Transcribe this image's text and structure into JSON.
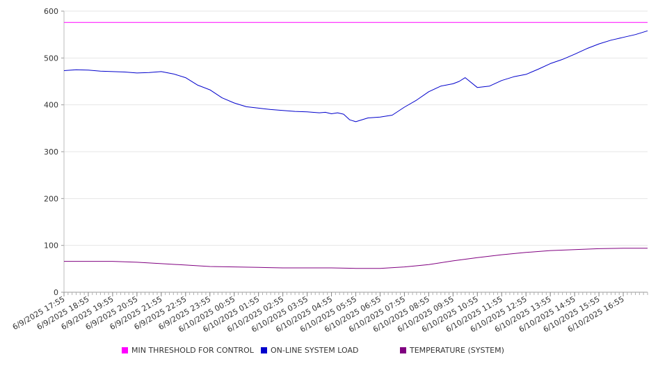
{
  "chart_data": {
    "type": "line",
    "title": "",
    "xlabel": "",
    "ylabel": "",
    "ylim": [
      0,
      600
    ],
    "y_ticks": [
      0,
      100,
      200,
      300,
      400,
      500,
      600
    ],
    "x_tick_labels": [
      "6/9/2025 17:55",
      "6/9/2025 18:55",
      "6/9/2025 19:55",
      "6/9/2025 20:55",
      "6/9/2025 21:55",
      "6/9/2025 22:55",
      "6/9/2025 23:55",
      "6/10/2025 00:55",
      "6/10/2025 01:55",
      "6/10/2025 02:55",
      "6/10/2025 03:55",
      "6/10/2025 04:55",
      "6/10/2025 05:55",
      "6/10/2025 06:55",
      "6/10/2025 07:55",
      "6/10/2025 08:55",
      "6/10/2025 09:55",
      "6/10/2025 10:55",
      "6/10/2025 11:55",
      "6/10/2025 12:55",
      "6/10/2025 13:55",
      "6/10/2025 14:55",
      "6/10/2025 15:55",
      "6/10/2025 16:55"
    ],
    "x_range": [
      "6/9/2025 17:55",
      "6/10/2025 17:55"
    ],
    "grid": true,
    "legend_position": "bottom",
    "series": [
      {
        "name": "MIN THRESHOLD FOR CONTROL",
        "color": "#ff00ff",
        "x": [
          "6/9/2025 17:55",
          "6/10/2025 17:55"
        ],
        "values": [
          576,
          576
        ]
      },
      {
        "name": "ON-LINE SYSTEM LOAD",
        "color": "#0000cc",
        "x": [
          "6/9/2025 17:55",
          "6/9/2025 18:25",
          "6/9/2025 18:55",
          "6/9/2025 19:25",
          "6/9/2025 19:55",
          "6/9/2025 20:25",
          "6/9/2025 20:55",
          "6/9/2025 21:25",
          "6/9/2025 21:55",
          "6/9/2025 22:25",
          "6/9/2025 22:55",
          "6/9/2025 23:25",
          "6/9/2025 23:55",
          "6/10/2025 00:25",
          "6/10/2025 00:55",
          "6/10/2025 01:25",
          "6/10/2025 01:55",
          "6/10/2025 02:25",
          "6/10/2025 02:55",
          "6/10/2025 03:25",
          "6/10/2025 03:55",
          "6/10/2025 04:25",
          "6/10/2025 04:40",
          "6/10/2025 04:55",
          "6/10/2025 05:10",
          "6/10/2025 05:25",
          "6/10/2025 05:40",
          "6/10/2025 05:55",
          "6/10/2025 06:25",
          "6/10/2025 06:55",
          "6/10/2025 07:25",
          "6/10/2025 07:55",
          "6/10/2025 08:25",
          "6/10/2025 08:55",
          "6/10/2025 09:25",
          "6/10/2025 09:55",
          "6/10/2025 10:10",
          "6/10/2025 10:25",
          "6/10/2025 10:55",
          "6/10/2025 11:25",
          "6/10/2025 11:55",
          "6/10/2025 12:25",
          "6/10/2025 12:55",
          "6/10/2025 13:25",
          "6/10/2025 13:55",
          "6/10/2025 14:25",
          "6/10/2025 14:55",
          "6/10/2025 15:25",
          "6/10/2025 15:55",
          "6/10/2025 16:25",
          "6/10/2025 16:55",
          "6/10/2025 17:25",
          "6/10/2025 17:55"
        ],
        "values": [
          473,
          475,
          474,
          472,
          471,
          470,
          468,
          469,
          471,
          466,
          458,
          442,
          432,
          415,
          404,
          396,
          393,
          390,
          388,
          386,
          385,
          383,
          384,
          381,
          383,
          380,
          368,
          364,
          372,
          374,
          378,
          395,
          410,
          428,
          440,
          445,
          450,
          458,
          437,
          440,
          452,
          460,
          465,
          476,
          488,
          497,
          508,
          520,
          530,
          538,
          544,
          550,
          558
        ]
      },
      {
        "name": "TEMPERATURE (SYSTEM)",
        "color": "#800080",
        "x": [
          "6/9/2025 17:55",
          "6/9/2025 18:55",
          "6/9/2025 19:55",
          "6/9/2025 20:55",
          "6/9/2025 21:55",
          "6/9/2025 22:55",
          "6/9/2025 23:55",
          "6/10/2025 00:55",
          "6/10/2025 01:55",
          "6/10/2025 02:55",
          "6/10/2025 03:55",
          "6/10/2025 04:55",
          "6/10/2025 05:55",
          "6/10/2025 06:55",
          "6/10/2025 07:55",
          "6/10/2025 08:55",
          "6/10/2025 09:55",
          "6/10/2025 10:55",
          "6/10/2025 11:55",
          "6/10/2025 12:55",
          "6/10/2025 13:55",
          "6/10/2025 14:55",
          "6/10/2025 15:55",
          "6/10/2025 16:55",
          "6/10/2025 17:55"
        ],
        "values": [
          66,
          66,
          66,
          64,
          61,
          58,
          55,
          54,
          53,
          52,
          52,
          52,
          51,
          51,
          54,
          59,
          67,
          74,
          80,
          85,
          89,
          91,
          93,
          94,
          94
        ]
      }
    ]
  }
}
